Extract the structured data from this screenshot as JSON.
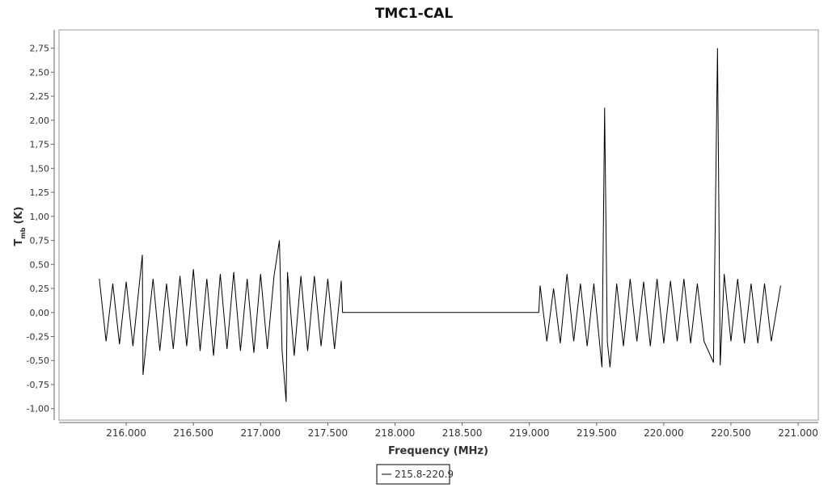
{
  "chart_data": {
    "type": "line",
    "title": "TMC1-CAL",
    "x_label": "Frequency (MHz)",
    "y_label": "T",
    "y_label_sub": "mb",
    "y_label_unit": "(K)",
    "xlim": [
      215500,
      221150
    ],
    "ylim": [
      -1.12,
      2.94
    ],
    "xticks": [
      {
        "value": 216000,
        "label": "216.000"
      },
      {
        "value": 216500,
        "label": "216.500"
      },
      {
        "value": 217000,
        "label": "217.000"
      },
      {
        "value": 217500,
        "label": "217.500"
      },
      {
        "value": 218000,
        "label": "218.000"
      },
      {
        "value": 218500,
        "label": "218.500"
      },
      {
        "value": 219000,
        "label": "219.000"
      },
      {
        "value": 219500,
        "label": "219.500"
      },
      {
        "value": 220000,
        "label": "220.000"
      },
      {
        "value": 220500,
        "label": "220.500"
      },
      {
        "value": 221000,
        "label": "221.000"
      }
    ],
    "yticks": [
      {
        "value": -1,
        "label": "-1,00"
      },
      {
        "value": -0.75,
        "label": "-0,75"
      },
      {
        "value": -0.5,
        "label": "-0,50"
      },
      {
        "value": -0.25,
        "label": "-0,25"
      },
      {
        "value": 0,
        "label": "0,00"
      },
      {
        "value": 0.25,
        "label": "0,25"
      },
      {
        "value": 0.5,
        "label": "0,50"
      },
      {
        "value": 0.75,
        "label": "0,75"
      },
      {
        "value": 1,
        "label": "1,00"
      },
      {
        "value": 1.25,
        "label": "1,25"
      },
      {
        "value": 1.5,
        "label": "1,50"
      },
      {
        "value": 1.75,
        "label": "1,75"
      },
      {
        "value": 2,
        "label": "2,00"
      },
      {
        "value": 2.25,
        "label": "2,25"
      },
      {
        "value": 2.5,
        "label": "2,50"
      },
      {
        "value": 2.75,
        "label": "2,75"
      }
    ],
    "grid": false,
    "x": [
      215800,
      215850,
      215900,
      215950,
      216000,
      216050,
      216100,
      216120,
      216125,
      216150,
      216200,
      216250,
      216300,
      216350,
      216400,
      216450,
      216500,
      216550,
      216600,
      216650,
      216700,
      216750,
      216800,
      216850,
      216900,
      216950,
      217000,
      217050,
      217100,
      217140,
      217160,
      217190,
      217200,
      217250,
      217300,
      217350,
      217400,
      217450,
      217500,
      217550,
      217600,
      217610,
      219070,
      219080,
      219130,
      219180,
      219230,
      219280,
      219330,
      219380,
      219430,
      219480,
      219540,
      219560,
      219580,
      219600,
      219650,
      219700,
      219750,
      219800,
      219850,
      219900,
      219950,
      220000,
      220050,
      220100,
      220150,
      220200,
      220250,
      220300,
      220370,
      220400,
      220420,
      220450,
      220500,
      220550,
      220600,
      220650,
      220700,
      220750,
      220800,
      220870
    ],
    "series": [
      {
        "name": "215.8-220.9",
        "color": "#000000",
        "values": [
          0.35,
          -0.3,
          0.3,
          -0.33,
          0.32,
          -0.35,
          0.33,
          0.6,
          -0.65,
          -0.3,
          0.35,
          -0.4,
          0.3,
          -0.38,
          0.38,
          -0.35,
          0.45,
          -0.4,
          0.35,
          -0.45,
          0.4,
          -0.38,
          0.42,
          -0.4,
          0.35,
          -0.42,
          0.4,
          -0.38,
          0.38,
          0.75,
          -0.4,
          -0.93,
          0.42,
          -0.45,
          0.38,
          -0.4,
          0.38,
          -0.35,
          0.35,
          -0.38,
          0.33,
          0,
          0,
          0.28,
          -0.3,
          0.25,
          -0.32,
          0.4,
          -0.3,
          0.3,
          -0.35,
          0.3,
          -0.57,
          2.13,
          -0.3,
          -0.57,
          0.3,
          -0.35,
          0.35,
          -0.3,
          0.32,
          -0.35,
          0.35,
          -0.32,
          0.33,
          -0.3,
          0.35,
          -0.32,
          0.3,
          -0.3,
          -0.52,
          2.75,
          -0.55,
          0.4,
          -0.3,
          0.35,
          -0.32,
          0.3,
          -0.32,
          0.3,
          -0.3,
          0.28
        ]
      }
    ]
  }
}
